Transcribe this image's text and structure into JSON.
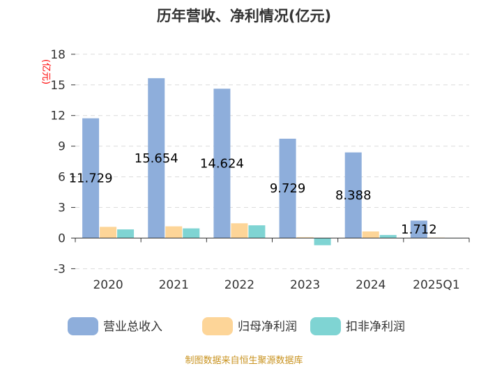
{
  "chart_data": {
    "type": "bar",
    "title": "历年营收、净利情况(亿元)",
    "ylabel": "(亿元)",
    "categories": [
      "2020",
      "2021",
      "2022",
      "2023",
      "2024",
      "2025Q1"
    ],
    "yticks": [
      18,
      15,
      12,
      9,
      6,
      3,
      0,
      -3
    ],
    "ylim": [
      -3,
      18
    ],
    "grid": true,
    "legend_position": "bottom",
    "series": [
      {
        "name": "营业总收入",
        "color": "#8eaedb",
        "values": [
          11.729,
          15.654,
          14.624,
          9.729,
          8.388,
          1.712
        ]
      },
      {
        "name": "归母净利润",
        "color": "#fdd598",
        "values": [
          1.1,
          1.15,
          1.45,
          0.08,
          0.65,
          0.05
        ]
      },
      {
        "name": "扣非净利润",
        "color": "#7fd4d3",
        "values": [
          0.85,
          0.95,
          1.25,
          -0.7,
          0.3,
          0.03
        ]
      }
    ],
    "data_labels": [
      "11.729",
      "15.654",
      "14.624",
      "9.729",
      "8.388",
      "1.712"
    ],
    "source": "制图数据来自恒生聚源数据库"
  }
}
